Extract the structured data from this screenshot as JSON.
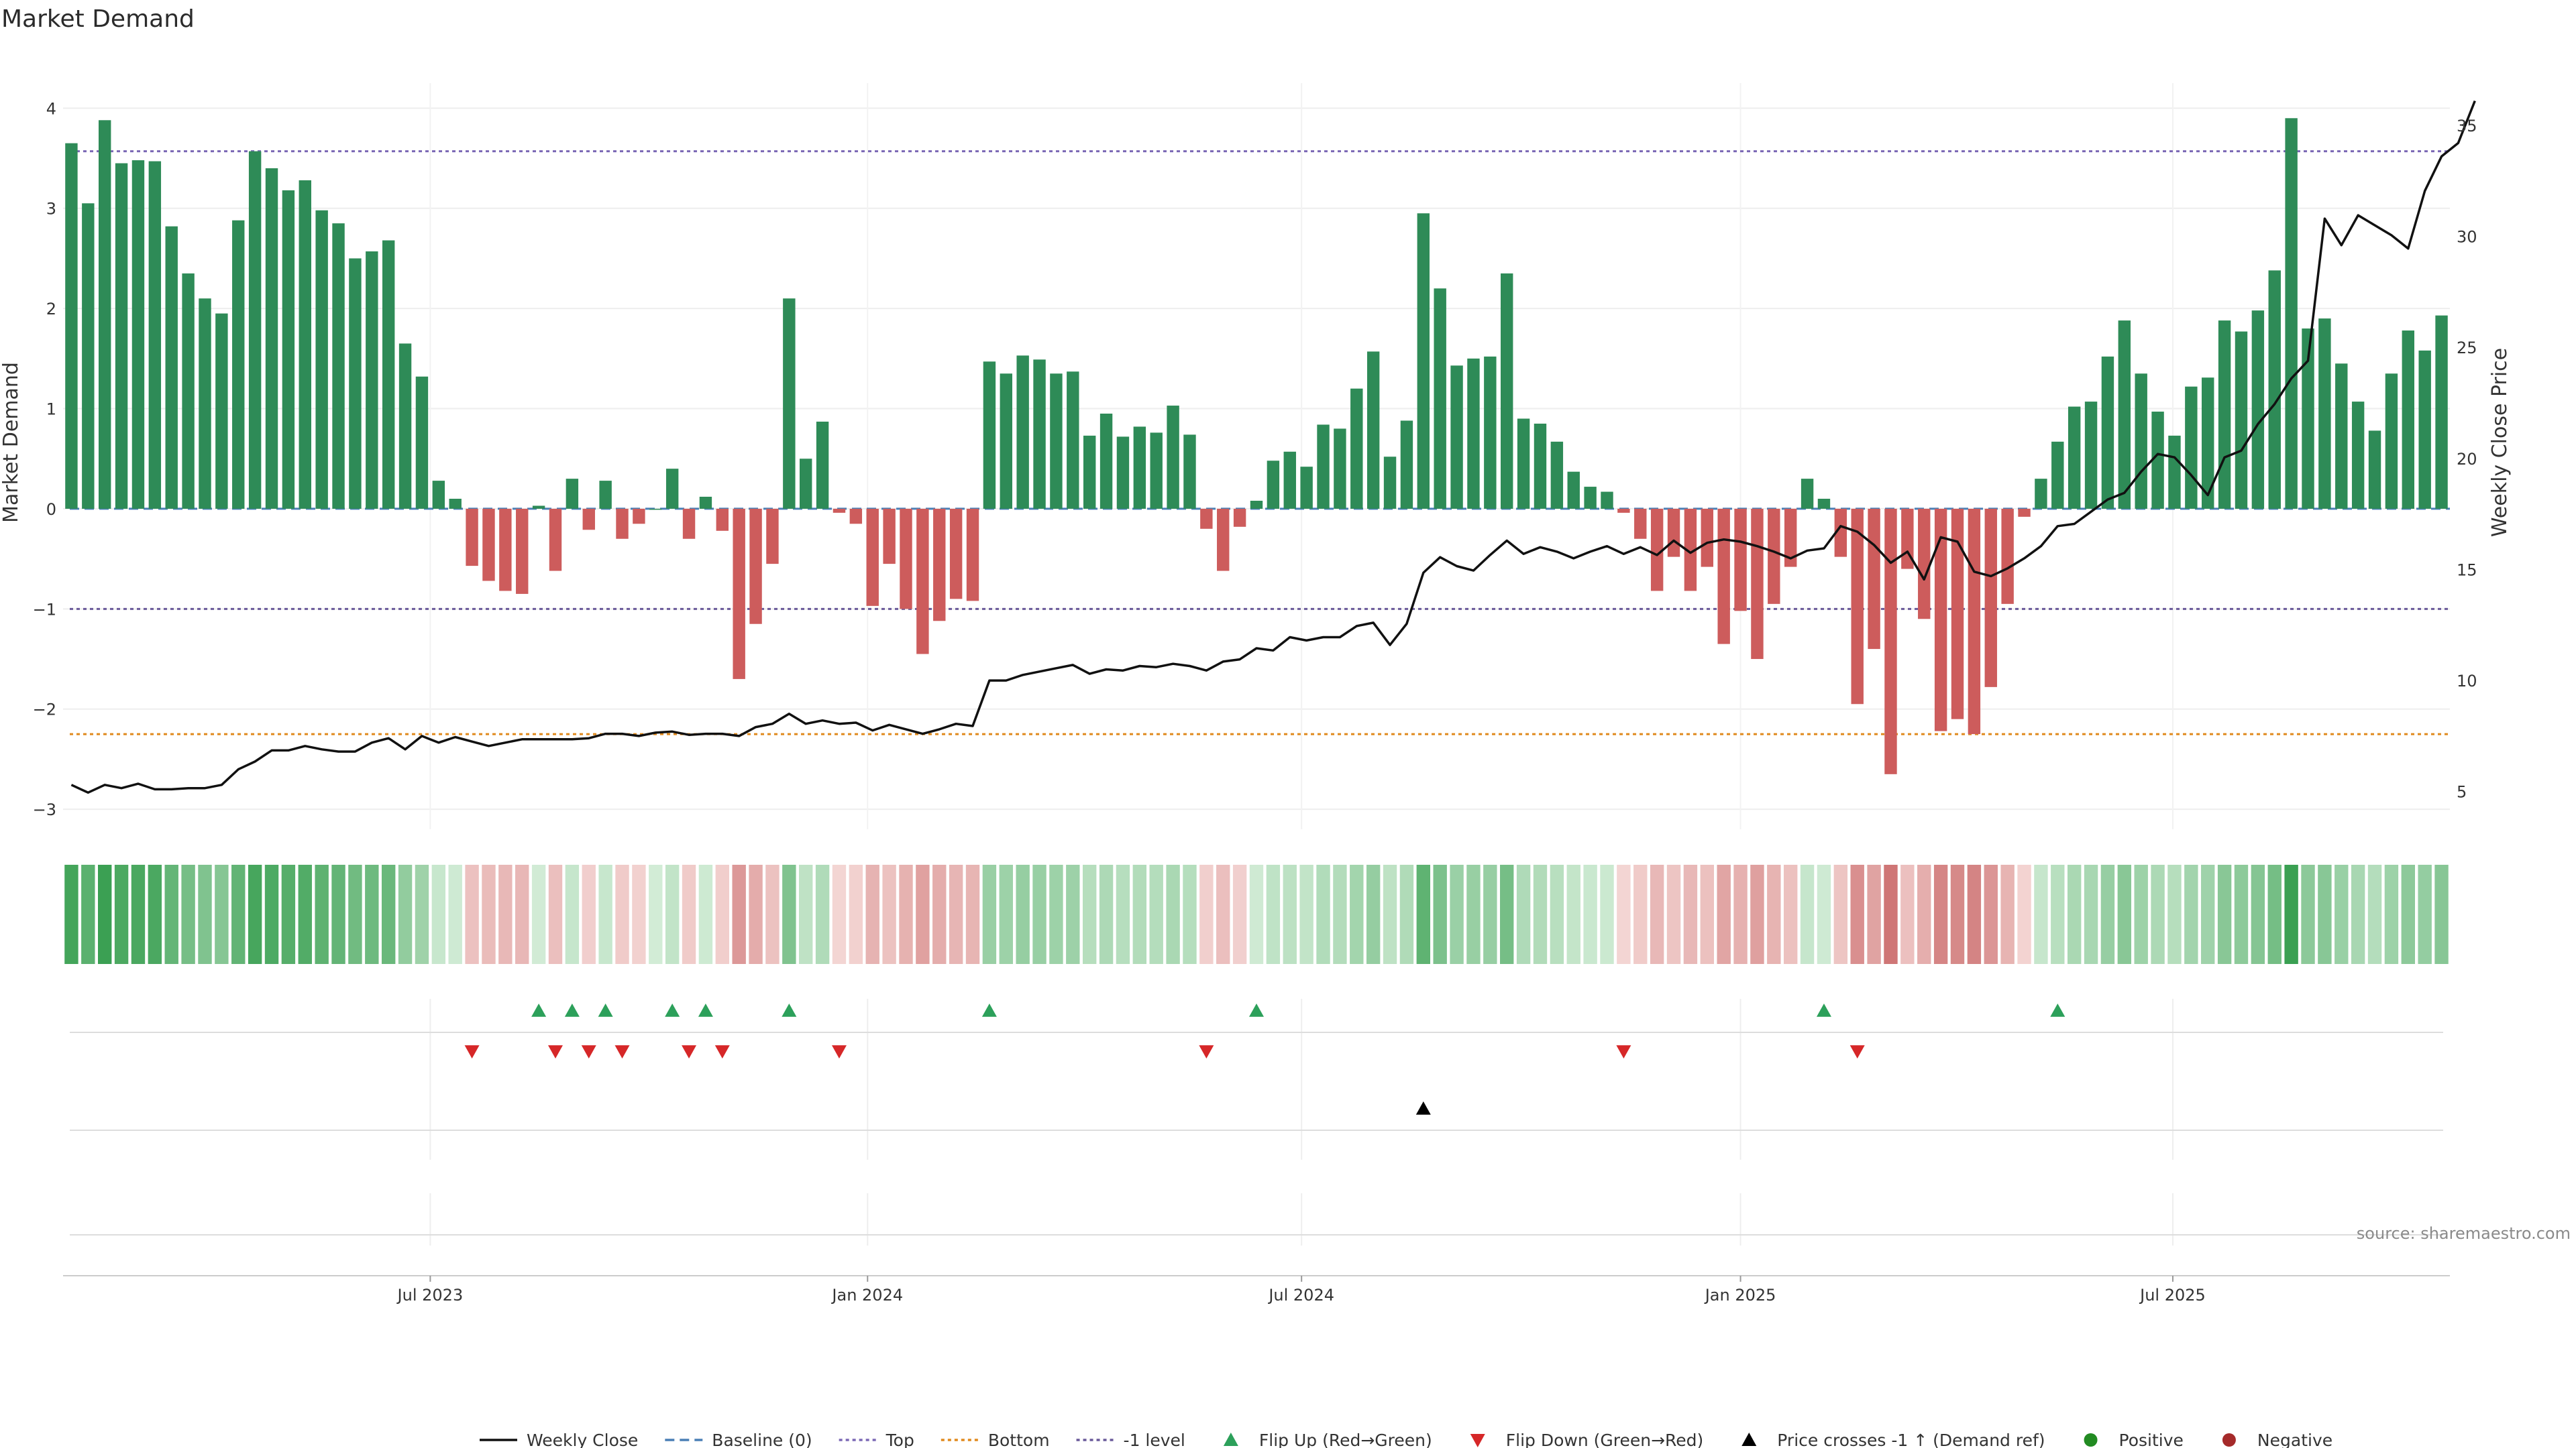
{
  "chart_data": {
    "type": "bar",
    "title": "Market Demand",
    "ylabel": "Market Demand",
    "y2label": "Weekly Close Price",
    "ylim": [
      -3.2,
      4.25
    ],
    "y2lim": [
      3.3,
      36.9
    ],
    "yticks": [
      4,
      3,
      2,
      1,
      0,
      -1,
      -2,
      -3
    ],
    "ytick_labels": [
      "4",
      "3",
      "2",
      "1",
      "0",
      "−1",
      "−2",
      "−3"
    ],
    "y2ticks": [
      35,
      30,
      25,
      20,
      15,
      10,
      5
    ],
    "y2tick_labels": [
      "35",
      "30",
      "25",
      "20",
      "15",
      "10",
      "5"
    ],
    "x_start_date": "2023-01-02",
    "weeks": 144,
    "xticks": [
      {
        "label": "Jul 2023",
        "week": 22
      },
      {
        "label": "Jan 2024",
        "week": 48.2
      },
      {
        "label": "Jul 2024",
        "week": 74.2
      },
      {
        "label": "Jan 2025",
        "week": 100.5
      },
      {
        "label": "Jul 2025",
        "week": 126.4
      }
    ],
    "reference_lines": [
      {
        "name": "Baseline (0)",
        "value": 0,
        "color": "#4a7fb5",
        "style": "dashed"
      },
      {
        "name": "Top",
        "value": 3.57,
        "color": "#7b68b5",
        "style": "dotted"
      },
      {
        "name": "Bottom",
        "value": -2.25,
        "color": "#e08a1e",
        "style": "dotted"
      },
      {
        "name": "-1 level",
        "value": -1,
        "color": "#6a5a9a",
        "style": "dotted"
      }
    ],
    "series": [
      {
        "name": "Market Demand",
        "type": "bar",
        "positive_color": "#2e8b57",
        "negative_color": "#cd5c5c",
        "values": [
          3.65,
          3.05,
          3.88,
          3.45,
          3.48,
          3.47,
          2.82,
          2.35,
          2.1,
          1.95,
          2.88,
          3.57,
          3.4,
          3.18,
          3.28,
          2.98,
          2.85,
          2.5,
          2.57,
          2.68,
          1.65,
          1.32,
          0.28,
          0.1,
          -0.57,
          -0.72,
          -0.82,
          -0.85,
          0.03,
          -0.62,
          0.3,
          -0.21,
          0.28,
          -0.3,
          -0.15,
          0.0,
          0.4,
          -0.3,
          0.12,
          -0.22,
          -1.7,
          -1.15,
          -0.55,
          2.1,
          0.5,
          0.87,
          -0.04,
          -0.15,
          -0.97,
          -0.55,
          -1.0,
          -1.45,
          -1.12,
          -0.9,
          -0.92,
          1.47,
          1.35,
          1.53,
          1.49,
          1.35,
          1.37,
          0.73,
          0.95,
          0.72,
          0.82,
          0.76,
          1.03,
          0.74,
          -0.2,
          -0.62,
          -0.18,
          0.08,
          0.48,
          0.57,
          0.42,
          0.84,
          0.8,
          1.2,
          1.57,
          0.52,
          0.88,
          2.95,
          2.2,
          1.43,
          1.5,
          1.52,
          2.35,
          0.9,
          0.85,
          0.67,
          0.37,
          0.22,
          0.17,
          -0.04,
          -0.3,
          -0.82,
          -0.48,
          -0.82,
          -0.58,
          -1.35,
          -1.02,
          -1.5,
          -0.95,
          -0.58,
          0.3,
          0.1,
          -0.48,
          -1.95,
          -1.4,
          -2.65,
          -0.6,
          -1.1,
          -2.22,
          -2.1,
          -2.25,
          -1.78,
          -0.95,
          -0.08,
          0.3,
          0.67,
          1.02,
          1.07,
          1.52,
          1.88,
          1.35,
          0.97,
          0.73,
          1.22,
          1.31,
          1.88,
          1.77,
          1.98,
          2.38,
          3.9,
          1.8,
          1.9,
          1.45,
          1.07,
          0.78,
          1.35,
          1.78,
          1.58,
          1.93
        ]
      },
      {
        "name": "Weekly Close",
        "type": "line",
        "color": "#111111",
        "values": [
          5.3,
          4.95,
          5.3,
          5.15,
          5.35,
          5.1,
          5.1,
          5.15,
          5.15,
          5.3,
          6.0,
          6.35,
          6.85,
          6.85,
          7.05,
          6.9,
          6.8,
          6.8,
          7.2,
          7.4,
          6.9,
          7.5,
          7.2,
          7.45,
          7.25,
          7.05,
          7.2,
          7.35,
          7.35,
          7.35,
          7.35,
          7.4,
          7.6,
          7.6,
          7.5,
          7.65,
          7.7,
          7.55,
          7.6,
          7.6,
          7.5,
          7.9,
          8.05,
          8.5,
          8.05,
          8.2,
          8.05,
          8.1,
          7.75,
          8.0,
          7.8,
          7.6,
          7.8,
          8.05,
          7.95,
          10.0,
          10.0,
          10.25,
          10.4,
          10.55,
          10.7,
          10.3,
          10.5,
          10.45,
          10.65,
          10.6,
          10.75,
          10.65,
          10.45,
          10.85,
          10.95,
          11.45,
          11.35,
          11.95,
          11.8,
          11.95,
          11.95,
          12.45,
          12.6,
          11.6,
          12.55,
          14.85,
          15.55,
          15.15,
          14.95,
          15.65,
          16.3,
          15.7,
          16.0,
          15.8,
          15.5,
          15.8,
          16.05,
          15.7,
          16.0,
          15.65,
          16.3,
          15.75,
          16.2,
          16.35,
          16.25,
          16.05,
          15.8,
          15.5,
          15.85,
          15.95,
          16.95,
          16.7,
          16.1,
          15.3,
          15.8,
          14.55,
          16.45,
          16.25,
          14.9,
          14.7,
          15.05,
          15.5,
          16.05,
          16.95,
          17.05,
          17.6,
          18.15,
          18.45,
          19.4,
          20.2,
          20.05,
          19.25,
          18.35,
          20.05,
          20.35,
          21.55,
          22.45,
          23.6,
          24.4,
          30.8,
          29.6,
          30.95,
          30.5,
          30.05,
          29.45,
          32.05,
          33.6,
          34.2,
          36.1
        ],
        "crosses_marker_week": 81
      }
    ],
    "heat_strip": {
      "name": "Demand intensity strip",
      "source_series": "Market Demand"
    },
    "signals": {
      "flip_up_weeks": [
        28,
        30,
        32,
        36,
        38,
        43,
        55,
        71,
        105,
        119
      ],
      "flip_down_weeks": [
        24,
        29,
        31,
        33,
        37,
        39,
        46,
        68,
        93,
        107
      ],
      "price_cross_weeks": [
        81
      ]
    },
    "legend": [
      {
        "label": "Weekly Close",
        "symbol": "line",
        "color": "#111111"
      },
      {
        "label": "Baseline (0)",
        "symbol": "dashed",
        "color": "#4a7fb5"
      },
      {
        "label": "Top",
        "symbol": "dotted",
        "color": "#7b68b5"
      },
      {
        "label": "Bottom",
        "symbol": "dotted",
        "color": "#e08a1e"
      },
      {
        "label": "-1 level",
        "symbol": "dotted",
        "color": "#6a5a9a"
      },
      {
        "label": "Flip Up (Red→Green)",
        "symbol": "triangle-up",
        "color": "#2ca05a"
      },
      {
        "label": "Flip Down (Green→Red)",
        "symbol": "triangle-down",
        "color": "#d62728"
      },
      {
        "label": "Price crosses -1 ↑ (Demand ref)",
        "symbol": "triangle-up",
        "color": "#000000"
      },
      {
        "label": "Positive",
        "symbol": "circle",
        "color": "#228b22"
      },
      {
        "label": "Negative",
        "symbol": "circle",
        "color": "#a52a2a"
      }
    ],
    "legend_position": "bottom-center",
    "source_note": "source: sharemaestro.com"
  }
}
